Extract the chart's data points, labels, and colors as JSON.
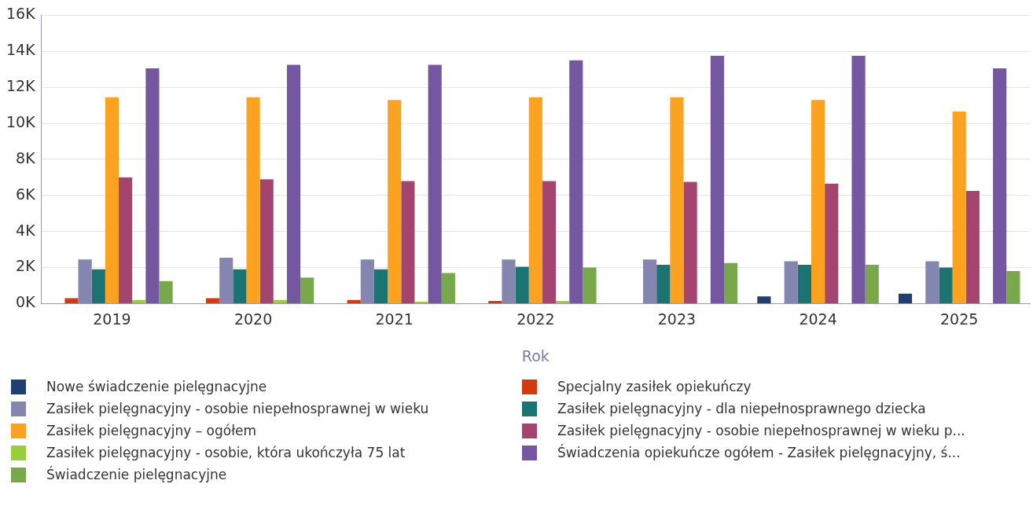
{
  "chart_data": {
    "type": "bar",
    "xlabel": "Rok",
    "categories": [
      "2019",
      "2020",
      "2021",
      "2022",
      "2023",
      "2024",
      "2025"
    ],
    "series": [
      {
        "name": "Nowe świadczenie pielęgnacyjne",
        "color": "#1f3f6e",
        "values": [
          null,
          null,
          null,
          null,
          null,
          400,
          550
        ]
      },
      {
        "name": "Specjalny zasiłek opiekuńczy",
        "color": "#d13b0e",
        "values": [
          300,
          300,
          200,
          150,
          null,
          null,
          null
        ]
      },
      {
        "name": "Zasiłek pielęgnacyjny -  osobie niepełnosprawnej w wieku",
        "color": "#8586b0",
        "values": [
          2450,
          2550,
          2450,
          2450,
          2450,
          2350,
          2350
        ]
      },
      {
        "name": "Zasiłek pielęgnacyjny - dla niepełnosprawnego dziecka",
        "color": "#1b7372",
        "values": [
          1900,
          1900,
          1900,
          2050,
          2150,
          2150,
          2000
        ]
      },
      {
        "name": "Zasiłek pielęgnacyjny – ogółem",
        "color": "#fba320",
        "values": [
          11450,
          11450,
          11300,
          11450,
          11450,
          11300,
          10650
        ]
      },
      {
        "name": "Zasiłek pielęgnacyjny - osobie niepełnosprawnej w wieku p...",
        "color": "#a3456f",
        "values": [
          7000,
          6900,
          6800,
          6800,
          6750,
          6650,
          6250
        ]
      },
      {
        "name": "Zasiłek pielęgnacyjny - osobie, która ukończyła 75 lat",
        "color": "#9acd3c",
        "values": [
          200,
          200,
          100,
          150,
          null,
          null,
          null
        ]
      },
      {
        "name": "Świadczenia opiekuńcze ogółem - Zasiłek pielęgnacyjny, ś...",
        "color": "#7457a0",
        "values": [
          13050,
          13250,
          13250,
          13500,
          13750,
          13750,
          13050
        ]
      },
      {
        "name": "Świadczenie pielęgnacyjne",
        "color": "#79a84a",
        "values": [
          1250,
          1450,
          1700,
          2000,
          2250,
          2150,
          1800
        ]
      }
    ],
    "ylim": [
      0,
      16000
    ],
    "yticks": [
      {
        "value": 0,
        "label": "0K"
      },
      {
        "value": 2000,
        "label": "2K"
      },
      {
        "value": 4000,
        "label": "4K"
      },
      {
        "value": 6000,
        "label": "6K"
      },
      {
        "value": 8000,
        "label": "8K"
      },
      {
        "value": 10000,
        "label": "10K"
      },
      {
        "value": 12000,
        "label": "12K"
      },
      {
        "value": 14000,
        "label": "14K"
      },
      {
        "value": 16000,
        "label": "16K"
      }
    ],
    "grid": "y",
    "legend": "bottom"
  }
}
